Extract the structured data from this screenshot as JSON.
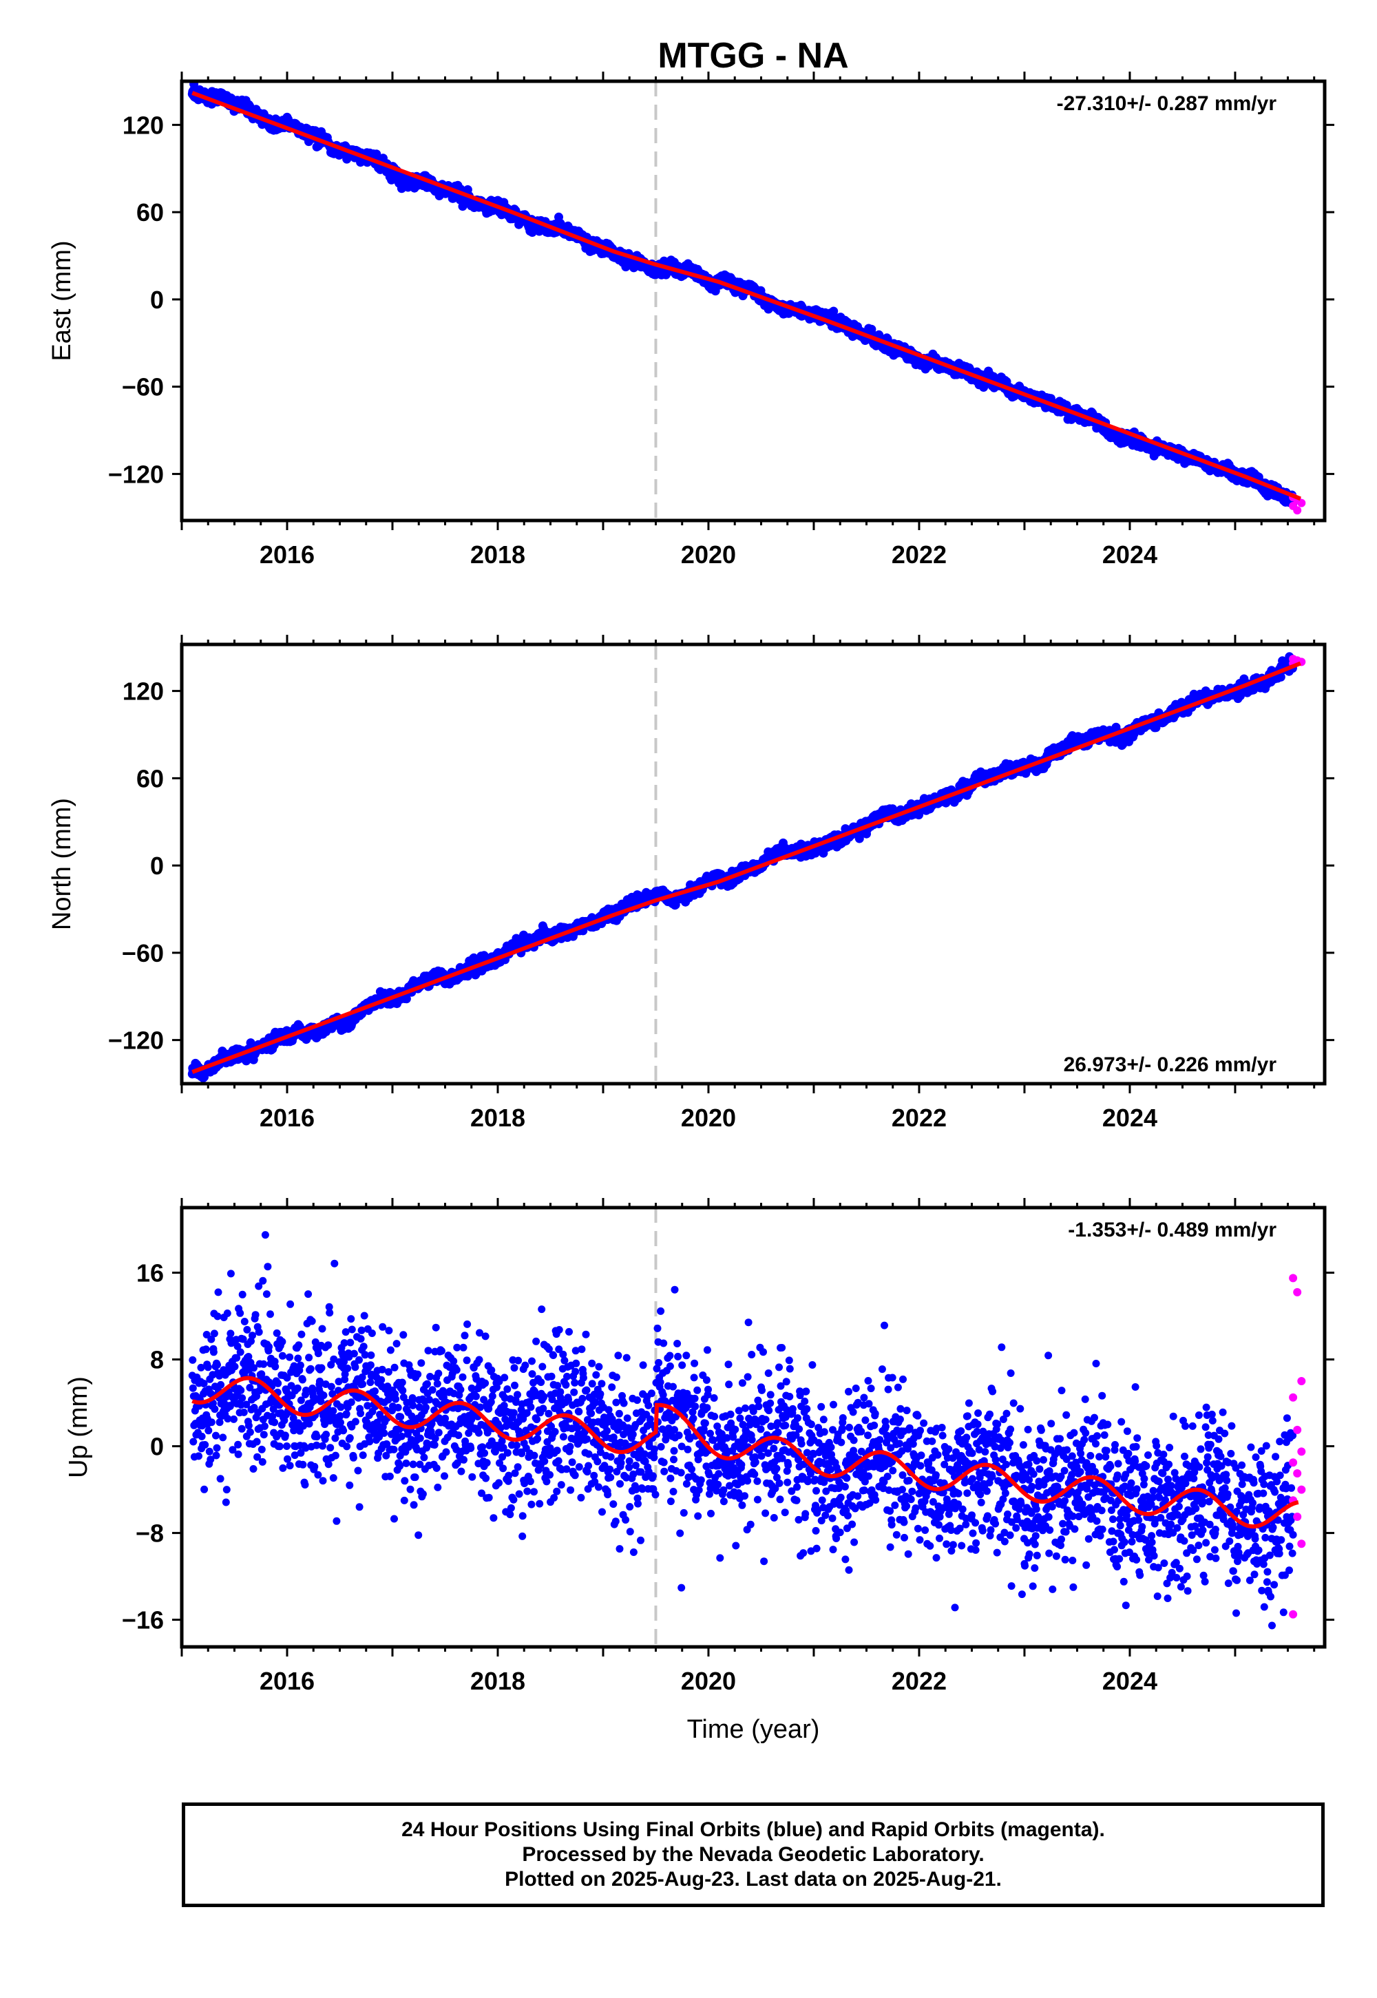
{
  "title": "MTGG - NA",
  "colors": {
    "final_orbits": "#0000ff",
    "rapid_orbits": "#ff00ff",
    "model_fit": "#ff0000",
    "event_line": "#c8c8c8",
    "frame": "#000000"
  },
  "footer": {
    "line1": "24 Hour Positions Using Final Orbits (blue) and Rapid Orbits (magenta).",
    "line2": "Processed by the Nevada Geodetic Laboratory.",
    "line3": "Plotted on 2025-Aug-23. Last data on 2025-Aug-21."
  },
  "chart_data": [
    {
      "type": "scatter",
      "ylabel": "East (mm)",
      "xlabel": "",
      "xlim": [
        2015.0,
        2025.85
      ],
      "ylim": [
        -152,
        150
      ],
      "x_ticks": [
        2016,
        2018,
        2020,
        2022,
        2024
      ],
      "y_ticks": [
        120,
        60,
        0,
        -60,
        -120
      ],
      "y_tick_labels": [
        "120",
        "60",
        "0",
        "−60",
        "−120"
      ],
      "event_line_x": 2019.5,
      "rate_label": "-27.310+/- 0.287 mm/yr",
      "rate_position": "top-right",
      "series": [
        {
          "name": "Final Orbits",
          "x_range": [
            2015.1,
            2025.55
          ],
          "trend": {
            "x": [
              2015.1,
              2025.6
            ],
            "y": [
              142,
              -140
            ]
          }
        },
        {
          "name": "Rapid Orbits",
          "x_range": [
            2025.55,
            2025.63
          ],
          "values_mm": [
            -136,
            -138,
            -140,
            -142,
            -145
          ]
        },
        {
          "name": "Model fit",
          "x": [
            2015.1,
            2016.1,
            2017.1,
            2018.1,
            2019.1,
            2019.5,
            2020.1,
            2021.1,
            2022.1,
            2023.1,
            2024.1,
            2025.1,
            2025.62
          ],
          "y": [
            142,
            115,
            88,
            61,
            33,
            24,
            12,
            -14,
            -41,
            -68,
            -95,
            -122,
            -137
          ]
        }
      ]
    },
    {
      "type": "scatter",
      "ylabel": "North (mm)",
      "xlabel": "",
      "xlim": [
        2015.0,
        2025.85
      ],
      "ylim": [
        -150,
        152
      ],
      "x_ticks": [
        2016,
        2018,
        2020,
        2022,
        2024
      ],
      "y_ticks": [
        120,
        60,
        0,
        -60,
        -120
      ],
      "y_tick_labels": [
        "120",
        "60",
        "0",
        "−60",
        "−120"
      ],
      "event_line_x": 2019.5,
      "rate_label": "26.973+/- 0.226 mm/yr",
      "rate_position": "bottom-right",
      "series": [
        {
          "name": "Final Orbits",
          "x_range": [
            2015.1,
            2025.55
          ],
          "trend": {
            "x": [
              2015.1,
              2025.6
            ],
            "y": [
              -142,
              141
            ]
          }
        },
        {
          "name": "Rapid Orbits",
          "x_range": [
            2025.55,
            2025.63
          ],
          "values_mm": [
            142,
            141,
            140,
            139
          ]
        },
        {
          "name": "Model fit",
          "x": [
            2015.1,
            2016.1,
            2017.1,
            2018.1,
            2019.1,
            2019.5,
            2020.1,
            2021.1,
            2022.1,
            2023.1,
            2024.1,
            2025.1,
            2025.62
          ],
          "y": [
            -142,
            -115,
            -88,
            -61,
            -34,
            -24,
            -11,
            16,
            43,
            70,
            97,
            124,
            139
          ]
        }
      ]
    },
    {
      "type": "scatter",
      "ylabel": "Up (mm)",
      "xlabel": "Time (year)",
      "xlim": [
        2015.0,
        2025.85
      ],
      "ylim": [
        -18.5,
        22
      ],
      "x_ticks": [
        2016,
        2018,
        2020,
        2022,
        2024
      ],
      "y_ticks": [
        16,
        8,
        0,
        -8,
        -16
      ],
      "y_tick_labels": [
        "16",
        "8",
        "0",
        "−8",
        "−16"
      ],
      "event_line_x": 2019.5,
      "rate_label": "-1.353+/- 0.489 mm/yr",
      "rate_position": "top-right",
      "series": [
        {
          "name": "Final Orbits",
          "x_range": [
            2015.1,
            2025.55
          ],
          "trend": {
            "x": [
              2015.1,
              2025.6
            ],
            "y": [
              5.5,
              -6.5
            ]
          },
          "scatter_std_mm": 3.6
        },
        {
          "name": "Rapid Orbits",
          "x_range": [
            2025.55,
            2025.63
          ],
          "values_mm": [
            15.5,
            14.2,
            6,
            4.5,
            1.5,
            -0.5,
            -1.5,
            -2.5,
            -4,
            -5,
            -6.5,
            -9,
            -15.5
          ]
        },
        {
          "name": "Model fit",
          "trend": {
            "x": [
              2015.1,
              2025.6
            ],
            "y": [
              5.5,
              -6.5
            ]
          },
          "annual_amplitude_mm": 1.4,
          "offset_at_event_mm": 2.5
        }
      ]
    }
  ]
}
